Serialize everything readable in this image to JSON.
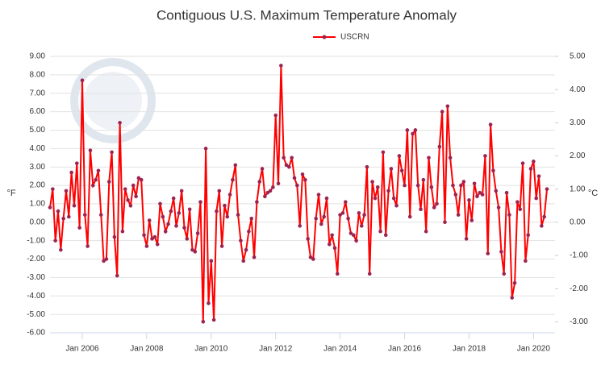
{
  "chart_data": {
    "type": "line",
    "title": "Contiguous U.S. Maximum Temperature Anomaly",
    "ylabel": "°F",
    "y2label": "°C",
    "categories": [
      null,
      null,
      null,
      null,
      null,
      null,
      null,
      null,
      null,
      null,
      null,
      null,
      "Jan 2006",
      null,
      null,
      null,
      null,
      null,
      null,
      null,
      null,
      null,
      null,
      null,
      null,
      null,
      null,
      null,
      null,
      null,
      null,
      null,
      null,
      null,
      null,
      null,
      "Jan 2008",
      null,
      null,
      null,
      null,
      null,
      null,
      null,
      null,
      null,
      null,
      null,
      null,
      null,
      null,
      null,
      null,
      null,
      null,
      null,
      null,
      null,
      null,
      null,
      "Jan 2010",
      null,
      null,
      null,
      null,
      null,
      null,
      null,
      null,
      null,
      null,
      null,
      null,
      null,
      null,
      null,
      null,
      null,
      null,
      null,
      null,
      null,
      null,
      null,
      "Jan 2012",
      null,
      null,
      null,
      null,
      null,
      null,
      null,
      null,
      null,
      null,
      null,
      null,
      null,
      null,
      null,
      null,
      null,
      null,
      null,
      null,
      null,
      null,
      null,
      "Jan 2014",
      null,
      null,
      null,
      null,
      null,
      null,
      null,
      null,
      null,
      null,
      null,
      null,
      null,
      null,
      null,
      null,
      null,
      null,
      null,
      null,
      null,
      null,
      null,
      "Jan 2016",
      null,
      null,
      null,
      null,
      null,
      null,
      null,
      null,
      null,
      null,
      null,
      null,
      null,
      null,
      null,
      null,
      null,
      null,
      null,
      null,
      null,
      null,
      null,
      "Jan 2018",
      null,
      null,
      null,
      null,
      null,
      null,
      null,
      null,
      null,
      null,
      null,
      null,
      null,
      null,
      null,
      null,
      null,
      null,
      null,
      null,
      null,
      null,
      null,
      "Jan 2020",
      null,
      null,
      null,
      null,
      null
    ],
    "series": [
      {
        "name": "USCRN",
        "color": "#ff0000",
        "marker_color": "#9e2350",
        "values": [
          0.8,
          1.8,
          -1.0,
          0.6,
          -1.5,
          0.2,
          1.7,
          0.3,
          2.7,
          0.9,
          3.2,
          -0.3,
          7.7,
          0.4,
          -1.3,
          3.9,
          2.0,
          2.3,
          2.8,
          0.4,
          -2.1,
          -2.0,
          2.2,
          3.8,
          -0.8,
          -2.9,
          5.4,
          -0.5,
          1.8,
          1.2,
          0.9,
          2.0,
          1.4,
          2.4,
          2.3,
          -0.7,
          -1.3,
          0.1,
          -0.9,
          -0.8,
          -1.2,
          1.0,
          0.3,
          -0.5,
          -0.1,
          0.6,
          1.3,
          -0.2,
          0.5,
          1.7,
          -0.3,
          -0.9,
          0.7,
          -1.5,
          -1.6,
          -0.6,
          1.1,
          -5.4,
          4.0,
          -4.4,
          -2.1,
          -5.3,
          0.6,
          1.7,
          -1.3,
          0.9,
          0.3,
          1.5,
          2.3,
          3.1,
          0.4,
          -1.0,
          -2.1,
          -1.5,
          -0.5,
          0.2,
          -1.9,
          1.1,
          2.2,
          2.9,
          1.4,
          1.6,
          1.7,
          1.9,
          5.8,
          2.1,
          8.5,
          3.5,
          3.1,
          3.0,
          3.5,
          2.4,
          2.0,
          -0.2,
          2.6,
          2.3,
          -0.9,
          -1.9,
          -2.0,
          0.2,
          1.5,
          -0.1,
          0.3,
          1.3,
          -1.2,
          -0.7,
          -1.4,
          -2.8,
          0.4,
          0.5,
          1.1,
          0.2,
          -0.6,
          -0.7,
          -1.0,
          0.5,
          -0.2,
          0.4,
          3.0,
          -2.8,
          2.2,
          1.3,
          1.9,
          -0.5,
          3.8,
          -0.7,
          1.7,
          2.9,
          1.3,
          0.9,
          3.6,
          2.8,
          2.0,
          5.0,
          0.3,
          4.8,
          5.0,
          2.0,
          0.7,
          2.3,
          -0.5,
          3.5,
          1.9,
          0.8,
          1.0,
          4.1,
          6.0,
          0.0,
          6.3,
          3.5,
          2.0,
          1.5,
          0.4,
          2.0,
          2.2,
          -0.9,
          1.2,
          0.1,
          2.1,
          1.4,
          1.6,
          1.5,
          3.6,
          -1.7,
          5.3,
          2.8,
          1.7,
          0.8,
          -1.6,
          -2.8,
          1.6,
          0.4,
          -4.1,
          -3.3,
          1.1,
          0.7,
          3.2,
          -2.1,
          -0.7,
          2.9,
          3.3,
          1.3,
          2.5,
          -0.2,
          0.3,
          1.8
        ]
      }
    ],
    "ylim": [
      -6,
      9
    ],
    "yticks": [
      {
        "value": 9,
        "label": "9.00"
      },
      {
        "value": 8,
        "label": "8.00"
      },
      {
        "value": 7,
        "label": "7.00"
      },
      {
        "value": 6,
        "label": "6.00"
      },
      {
        "value": 5,
        "label": "5.00"
      },
      {
        "value": 4,
        "label": "4.00"
      },
      {
        "value": 3,
        "label": "3.00"
      },
      {
        "value": 2,
        "label": "2.00"
      },
      {
        "value": 1,
        "label": "1.00"
      },
      {
        "value": 0,
        "label": "0.00"
      },
      {
        "value": -1,
        "label": "-1.00"
      },
      {
        "value": -2,
        "label": "-2.00"
      },
      {
        "value": -3,
        "label": "-3.00"
      },
      {
        "value": -4,
        "label": "-4.00"
      },
      {
        "value": -5,
        "label": "-5.00"
      },
      {
        "value": -6,
        "label": "-6.00"
      }
    ],
    "y2lim": [
      -3.33,
      5
    ],
    "y2ticks": [
      {
        "value": 5,
        "label": "5.00"
      },
      {
        "value": 4,
        "label": "4.00"
      },
      {
        "value": 3,
        "label": "3.00"
      },
      {
        "value": 2,
        "label": "2.00"
      },
      {
        "value": 1,
        "label": "1.00"
      },
      {
        "value": 0,
        "label": "0.00"
      },
      {
        "value": -1,
        "label": "-1.00"
      },
      {
        "value": -2,
        "label": "-2.00"
      },
      {
        "value": -3,
        "label": "-3.00"
      }
    ],
    "grid": true,
    "legend": "top"
  }
}
